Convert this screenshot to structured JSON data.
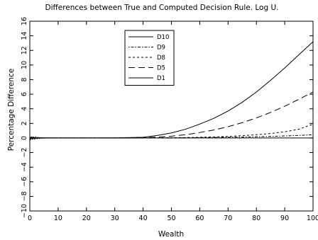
{
  "chart_data": {
    "type": "line",
    "title": "Differences between True and Computed Decision Rule. Log U.",
    "xlabel": "Wealth",
    "ylabel": "Percentage Difference",
    "xlim": [
      0,
      100
    ],
    "ylim": [
      -10,
      16
    ],
    "xticks": [
      "0",
      "10",
      "20",
      "30",
      "40",
      "50",
      "60",
      "70",
      "80",
      "90",
      "100"
    ],
    "yticks": [
      "−10",
      "−8",
      "−6",
      "−4",
      "−2",
      "0",
      "2",
      "4",
      "6",
      "8",
      "10",
      "12",
      "14",
      "16"
    ],
    "grid": false,
    "legend_position": "top-left",
    "x": [
      0,
      5,
      10,
      20,
      30,
      40,
      45,
      50,
      55,
      60,
      65,
      70,
      75,
      80,
      85,
      90,
      95,
      100
    ],
    "series": [
      {
        "name": "D10",
        "dash": "",
        "values": [
          0.0,
          0.0,
          0.0,
          0.0,
          0.02,
          0.1,
          0.35,
          0.7,
          1.2,
          1.9,
          2.7,
          3.7,
          4.9,
          6.3,
          7.9,
          9.6,
          11.4,
          13.2
        ]
      },
      {
        "name": "D9",
        "dash": "1.5,2,4,2",
        "values": [
          0.0,
          0.0,
          0.0,
          0.0,
          0.0,
          0.0,
          0.0,
          0.02,
          0.03,
          0.05,
          0.07,
          0.1,
          0.13,
          0.17,
          0.22,
          0.28,
          0.35,
          0.45
        ]
      },
      {
        "name": "D8",
        "dash": "3,3",
        "values": [
          0.0,
          0.0,
          0.0,
          0.0,
          0.0,
          0.01,
          0.02,
          0.04,
          0.06,
          0.1,
          0.15,
          0.22,
          0.32,
          0.45,
          0.62,
          0.85,
          1.2,
          1.9
        ]
      },
      {
        "name": "D5",
        "dash": "9,5",
        "values": [
          0.0,
          0.0,
          0.0,
          0.0,
          0.01,
          0.05,
          0.12,
          0.25,
          0.45,
          0.75,
          1.1,
          1.55,
          2.1,
          2.75,
          3.5,
          4.35,
          5.3,
          6.3
        ]
      },
      {
        "name": "D1",
        "dash": "",
        "values": [
          0.0,
          0.0,
          0.0,
          0.0,
          0.0,
          0.0,
          0.0,
          0.0,
          0.0,
          0.0,
          0.0,
          0.0,
          0.0,
          0.0,
          0.0,
          0.0,
          0.0,
          0.0
        ]
      }
    ]
  }
}
